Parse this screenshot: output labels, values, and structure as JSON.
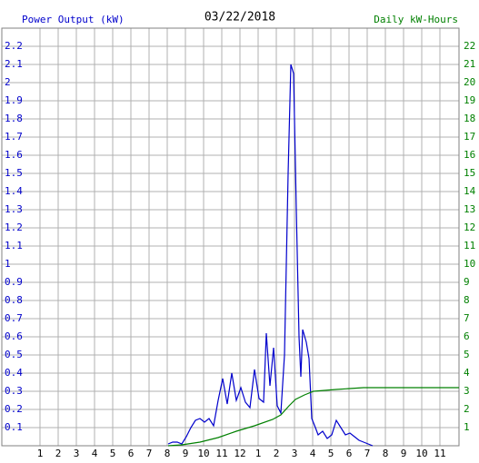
{
  "chart_data": {
    "type": "line",
    "title": "03/22/2018",
    "y_label": "Power Output (kW)",
    "y2_label": "Daily kW-Hours",
    "xlim": [
      -1.1,
      24.05
    ],
    "xticks": [
      1,
      2,
      3,
      4,
      5,
      6,
      7,
      8,
      9,
      10,
      11,
      12,
      {
        "value": 13,
        "label": "1"
      },
      {
        "value": 14,
        "label": "2"
      },
      {
        "value": 15,
        "label": "3"
      },
      {
        "value": 16,
        "label": "4"
      },
      {
        "value": 17,
        "label": "5"
      },
      {
        "value": 18,
        "label": "6"
      },
      {
        "value": 19,
        "label": "7"
      },
      {
        "value": 20,
        "label": "8"
      },
      {
        "value": 21,
        "label": "9"
      },
      {
        "value": 22,
        "label": "10"
      },
      {
        "value": 23,
        "label": "11"
      }
    ],
    "ylim": [
      0,
      2.3
    ],
    "yticks": [
      0.1,
      0.2,
      0.3,
      0.4,
      0.5,
      0.6,
      0.7,
      0.8,
      0.9,
      1.0,
      1.1,
      1.2,
      1.3,
      1.4,
      1.5,
      1.6,
      1.7,
      1.8,
      1.9,
      2.0,
      2.1,
      2.2
    ],
    "y2lim": [
      0,
      23
    ],
    "y2ticks": [
      1,
      2,
      3,
      4,
      5,
      6,
      7,
      8,
      9,
      10,
      11,
      12,
      13,
      14,
      15,
      16,
      17,
      18,
      19,
      20,
      21,
      22
    ],
    "grid": true,
    "series": [
      {
        "color": "#0000cc",
        "x": [
          8.05,
          8.3,
          8.55,
          8.8,
          9.05,
          9.3,
          9.55,
          9.8,
          10.05,
          10.3,
          10.55,
          10.8,
          11.05,
          11.3,
          11.55,
          11.8,
          12.05,
          12.3,
          12.55,
          12.8,
          13.05,
          13.3,
          13.45,
          13.65,
          13.85,
          14.05,
          14.25,
          14.45,
          14.65,
          14.8,
          14.95,
          15.1,
          15.25,
          15.35,
          15.45,
          15.65,
          15.8,
          15.95,
          16.15,
          16.3,
          16.55,
          16.8,
          17.05,
          17.3,
          17.55,
          17.8,
          18.05,
          18.3,
          18.55,
          18.8,
          19.05,
          19.3
        ],
        "values": [
          0.01,
          0.02,
          0.02,
          0.01,
          0.05,
          0.1,
          0.14,
          0.15,
          0.13,
          0.15,
          0.11,
          0.25,
          0.37,
          0.23,
          0.4,
          0.25,
          0.32,
          0.24,
          0.21,
          0.42,
          0.26,
          0.24,
          0.62,
          0.33,
          0.54,
          0.22,
          0.18,
          0.5,
          1.5,
          2.1,
          2.05,
          1.3,
          0.6,
          0.38,
          0.64,
          0.57,
          0.48,
          0.15,
          0.1,
          0.06,
          0.08,
          0.04,
          0.06,
          0.14,
          0.1,
          0.06,
          0.07,
          0.05,
          0.03,
          0.02,
          0.01,
          0
        ]
      },
      {
        "color": "#008000",
        "axis": "y2",
        "x": [
          8.05,
          8.8,
          9.8,
          10.8,
          11.8,
          12.8,
          13.8,
          14.25,
          14.7,
          15.05,
          15.55,
          16.05,
          17.3,
          18.8,
          24.05
        ],
        "values": [
          0,
          0.05,
          0.2,
          0.45,
          0.8,
          1.1,
          1.45,
          1.7,
          2.2,
          2.55,
          2.8,
          3.0,
          3.1,
          3.2,
          3.2
        ]
      }
    ]
  }
}
